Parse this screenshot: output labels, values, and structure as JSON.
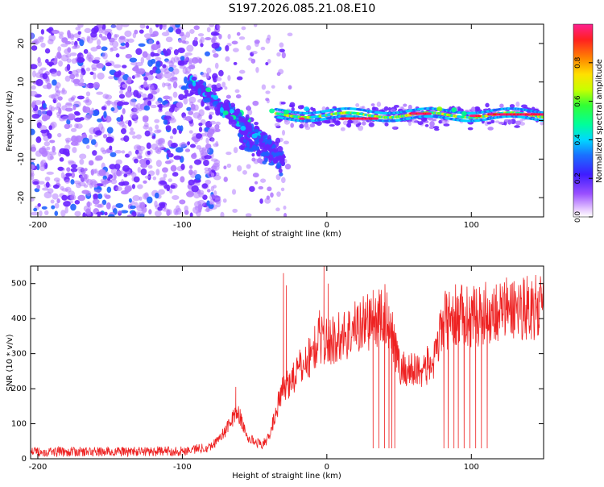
{
  "title": "S197.2026.085.21.08.E10",
  "colors": {
    "snr_line": "#ee2222",
    "axis": "#000000"
  },
  "chart_data": [
    {
      "type": "heatmap",
      "title": "S197.2026.085.21.08.E10",
      "xlabel": "Height of straight line (km)",
      "ylabel": "Frequency (Hz)",
      "xlim": [
        -205,
        150
      ],
      "ylim": [
        -25,
        25
      ],
      "xticks": [
        -200,
        -100,
        0,
        100
      ],
      "yticks": [
        -20,
        -10,
        0,
        10,
        20
      ],
      "colorbar": {
        "label": "Normalized spectral amplitude",
        "range": [
          0,
          1
        ],
        "ticks": [
          "0.0",
          "0.2",
          "0.4",
          "0.6",
          "0.8"
        ]
      },
      "features": {
        "noise_region_km": [
          -205,
          -85
        ],
        "descending_branch_km": [
          -95,
          -40
        ],
        "dispersed_branch_km": [
          -60,
          -30
        ],
        "tonal_line_km": [
          -35,
          150
        ],
        "tonal_line_freq_hz": [
          0.5,
          2.5
        ]
      }
    },
    {
      "type": "line",
      "xlabel": "Height of straight line (km)",
      "ylabel": "SNR (10 * v/v)",
      "xlim": [
        -205,
        150
      ],
      "ylim": [
        0,
        550
      ],
      "xticks": [
        -200,
        -100,
        0,
        100
      ],
      "yticks": [
        0,
        100,
        200,
        300,
        400,
        500
      ],
      "series": [
        {
          "name": "SNR",
          "x": [
            -205,
            -150,
            -100,
            -80,
            -70,
            -62,
            -55,
            -45,
            -40,
            -35,
            -30,
            -20,
            -10,
            -5,
            0,
            5,
            15,
            25,
            35,
            40,
            45,
            50,
            60,
            70,
            75,
            80,
            85,
            90,
            100,
            110,
            120,
            130,
            140,
            150
          ],
          "values": [
            20,
            20,
            22,
            35,
            80,
            140,
            60,
            40,
            60,
            140,
            200,
            250,
            300,
            350,
            330,
            340,
            360,
            390,
            400,
            410,
            380,
            260,
            250,
            265,
            280,
            390,
            400,
            410,
            405,
            415,
            425,
            430,
            435,
            425
          ]
        }
      ],
      "dropouts_km": [
        32,
        36,
        40,
        43,
        45,
        47,
        81,
        84,
        88,
        91,
        95,
        99,
        103,
        107,
        111
      ],
      "dropout_floor": 30,
      "spikes": [
        {
          "x": -63,
          "value": 205
        },
        {
          "x": -30,
          "value": 530
        },
        {
          "x": -28,
          "value": 495
        },
        {
          "x": -2,
          "value": 550
        },
        {
          "x": 1,
          "value": 500
        }
      ]
    }
  ]
}
